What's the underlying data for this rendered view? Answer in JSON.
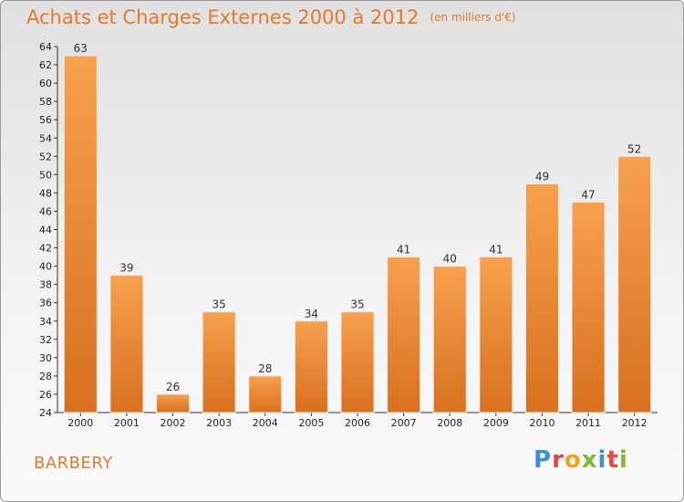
{
  "header": {
    "title": "Achats et Charges Externes 2000 à 2012",
    "unit": "(en milliers d'€)"
  },
  "footer": {
    "location": "BARBERY",
    "logo": "Proxiti"
  },
  "colors": {
    "bar_light": "#f7a04e",
    "bar_dark": "#d8701f",
    "title": "#e07a2e"
  },
  "chart_data": {
    "type": "bar",
    "categories": [
      "2000",
      "2001",
      "2002",
      "2003",
      "2004",
      "2005",
      "2006",
      "2007",
      "2008",
      "2009",
      "2010",
      "2011",
      "2012"
    ],
    "values": [
      63,
      39,
      26,
      35,
      28,
      34,
      35,
      41,
      40,
      41,
      49,
      47,
      52
    ],
    "ylim": [
      24,
      64
    ],
    "ytick_step": 2,
    "grid": false
  }
}
